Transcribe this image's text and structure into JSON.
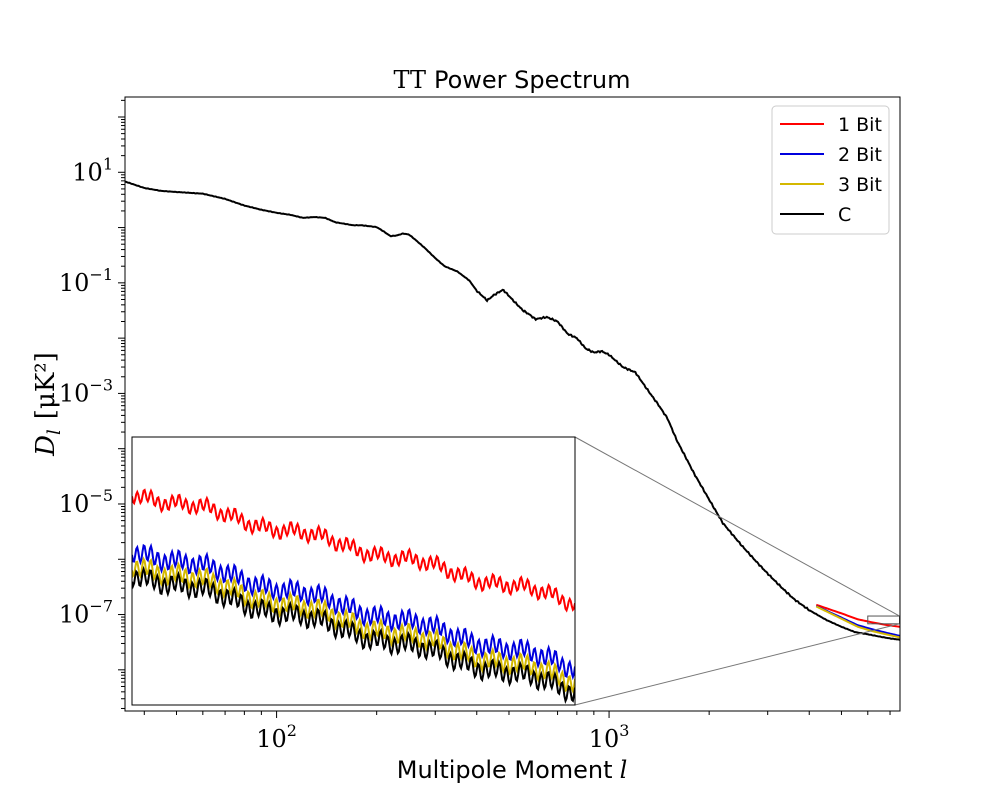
{
  "chart_data": {
    "type": "line",
    "title": {
      "tex": "TT",
      "rest": "Power Spectrum"
    },
    "xlabel": "Multipole Moment",
    "xlabel_var": "l",
    "ylabel": "D",
    "ylabel_sub": "l",
    "ylabel_unit": "[μK²]",
    "xscale": "log",
    "yscale": "log",
    "xlim": [
      35,
      7500
    ],
    "ylim": [
      1.8e-09,
      230
    ],
    "x_ticks": [
      {
        "value": 100,
        "base": "10",
        "exp": "2"
      },
      {
        "value": 1000,
        "base": "10",
        "exp": "3"
      }
    ],
    "y_ticks": [
      {
        "value": 10,
        "base": "10",
        "exp": "1"
      },
      {
        "value": 0.1,
        "base": "10",
        "exp": "−1"
      },
      {
        "value": 0.001,
        "base": "10",
        "exp": "−3"
      },
      {
        "value": 1e-05,
        "base": "10",
        "exp": "−5"
      },
      {
        "value": 1e-07,
        "base": "10",
        "exp": "−7"
      }
    ],
    "legend_position": "top-right",
    "grid": false,
    "main_curve": {
      "x": [
        35,
        40,
        45,
        50,
        60,
        70,
        80,
        90,
        100,
        110,
        120,
        130,
        140,
        150,
        170,
        180,
        200,
        210,
        220,
        230,
        240,
        250,
        260,
        280,
        300,
        320,
        350,
        380,
        400,
        430,
        450,
        480,
        500,
        520,
        550,
        580,
        600,
        650,
        700,
        750,
        800,
        850,
        900,
        950,
        1000,
        1100,
        1200,
        1300,
        1400,
        1500,
        1600,
        1700,
        1800,
        2000,
        2200,
        2500,
        2800,
        3000,
        3300,
        3600,
        4000,
        4500,
        5000,
        5500,
        6000,
        6500,
        7000,
        7500
      ],
      "y": [
        6.8,
        5.2,
        4.6,
        4.4,
        4.1,
        3.3,
        2.5,
        2.1,
        1.85,
        1.7,
        1.5,
        1.55,
        1.5,
        1.25,
        1.1,
        1.1,
        1.02,
        0.85,
        0.7,
        0.72,
        0.78,
        0.75,
        0.62,
        0.42,
        0.28,
        0.2,
        0.16,
        0.11,
        0.072,
        0.048,
        0.06,
        0.075,
        0.058,
        0.045,
        0.032,
        0.026,
        0.022,
        0.024,
        0.02,
        0.012,
        0.01,
        0.0065,
        0.0055,
        0.0058,
        0.005,
        0.003,
        0.0024,
        0.0012,
        0.00065,
        0.00035,
        0.00014,
        7e-05,
        3.6e-05,
        1.2e-05,
        4.5e-06,
        1.8e-06,
        8.5e-07,
        5.5e-07,
        3.1e-07,
        1.9e-07,
        1.2e-07,
        8e-08,
        6e-08,
        4.8e-08,
        4.4e-08,
        4e-08,
        3.7e-08,
        3.5e-08
      ]
    },
    "series": [
      {
        "name": "1 Bit",
        "color": "#ff0000",
        "tail_x": [
          4200,
          5000,
          5600,
          6200,
          6800,
          7500
        ],
        "tail_y": [
          1.5e-07,
          1.05e-07,
          8.2e-08,
          7.2e-08,
          6.5e-08,
          6e-08
        ],
        "inset_level": 0.98,
        "inset_slope": 0.08
      },
      {
        "name": "2 Bit",
        "color": "#0000dd",
        "tail_x": [
          4200,
          5000,
          5600,
          6200,
          6800,
          7500
        ],
        "tail_y": [
          1.42e-07,
          8.8e-08,
          6.4e-08,
          5.4e-08,
          4.7e-08,
          4.1e-08
        ],
        "inset_level": 0.93,
        "inset_slope": 0.14
      },
      {
        "name": "3 Bit",
        "color": "#d4b800",
        "tail_x": [
          4200,
          5000,
          5600,
          6200,
          6800,
          7500
        ],
        "tail_y": [
          1.4e-07,
          8.4e-08,
          6e-08,
          5e-08,
          4.4e-08,
          3.85e-08
        ],
        "inset_level": 0.92,
        "inset_slope": 0.145
      },
      {
        "name": "C",
        "color": "#000000",
        "tail_x": [
          4200,
          5000,
          5600,
          6200,
          6800,
          7500
        ],
        "tail_y": [
          1.38e-07,
          8.2e-08,
          5.8e-08,
          4.8e-08,
          4.2e-08,
          3.7e-08
        ],
        "inset_level": 0.915,
        "inset_slope": 0.15
      }
    ],
    "inset": {
      "xlim": [
        6000,
        7500
      ],
      "ylim": [
        6.8e-08,
        9.4e-08
      ]
    }
  }
}
